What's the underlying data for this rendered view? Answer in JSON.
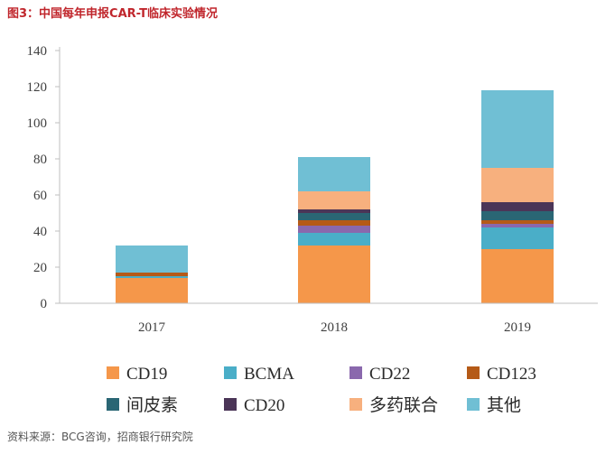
{
  "header": {
    "title": "图3：中国每年申报CAR-T临床实验情况"
  },
  "footer": {
    "source": "资料来源：BCG咨询，招商银行研究院"
  },
  "chart_data": {
    "type": "bar",
    "stacked": true,
    "title": "图3：中国每年申报CAR-T临床实验情况",
    "xlabel": "",
    "ylabel": "",
    "categories": [
      "2017",
      "2018",
      "2019"
    ],
    "ylim": [
      0,
      140
    ],
    "yticks": [
      0,
      20,
      40,
      60,
      80,
      100,
      120,
      140
    ],
    "grid": false,
    "legend_position": "bottom",
    "series": [
      {
        "name": "CD19",
        "color": "#f5974a",
        "values": [
          14,
          32,
          30
        ]
      },
      {
        "name": "BCMA",
        "color": "#4aaec8",
        "values": [
          1,
          7,
          12
        ]
      },
      {
        "name": "CD22",
        "color": "#8a68ad",
        "values": [
          0,
          4,
          2
        ]
      },
      {
        "name": "CD123",
        "color": "#b55a17",
        "values": [
          2,
          3,
          2
        ]
      },
      {
        "name": "间皮素",
        "color": "#2a6674",
        "values": [
          0,
          4,
          5
        ]
      },
      {
        "name": "CD20",
        "color": "#4b3557",
        "values": [
          0,
          2,
          5
        ]
      },
      {
        "name": "多药联合",
        "color": "#f7b07e",
        "values": [
          0,
          10,
          19
        ]
      },
      {
        "name": "其他",
        "color": "#70bfd4",
        "values": [
          15,
          19,
          43
        ]
      }
    ]
  }
}
